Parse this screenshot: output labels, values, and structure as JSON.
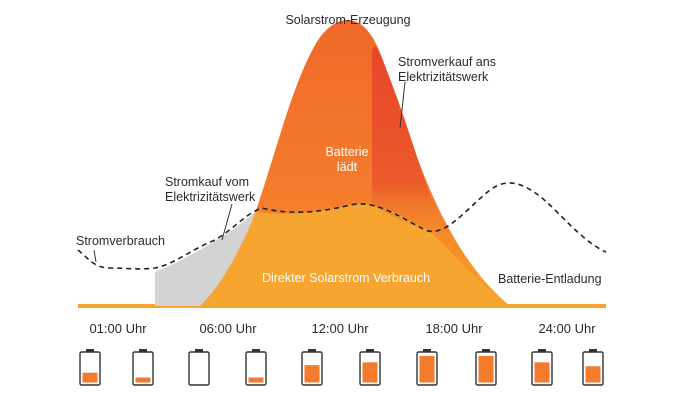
{
  "labels": {
    "solar_peak": "Solarstrom-Erzeugung",
    "sell_line1": "Stromverkauf ans",
    "sell_line2": "Elektrizitätswerk",
    "buy_line1": "Stromkauf vom",
    "buy_line2": "Elektrizitätswerk",
    "consumption": "Stromverbrauch",
    "battery_charging_line1": "Batterie",
    "battery_charging_line2": "lädt",
    "direct_use": "Direkter Solarstrom Verbrauch",
    "battery_discharge": "Batterie-Entladung"
  },
  "times": [
    "01:00 Uhr",
    "06:00 Uhr",
    "12:00 Uhr",
    "18:00 Uhr",
    "24:00 Uhr"
  ],
  "batteries": [
    {
      "level": 0.35
    },
    {
      "level": 0.18
    },
    {
      "level": 0.0
    },
    {
      "level": 0.18
    },
    {
      "level": 0.62
    },
    {
      "level": 0.72
    },
    {
      "level": 0.95
    },
    {
      "level": 0.95
    },
    {
      "level": 0.72
    },
    {
      "level": 0.58
    }
  ],
  "colors": {
    "solar_gradient_top": "#F0682A",
    "solar_gradient_bottom": "#F5A623",
    "sell": "#E84A2A",
    "buy": "#D0D0D0",
    "direct": "#F6A531",
    "baseline": "#F6A531",
    "battery_fill": "#F47B2B",
    "battery_outline": "#333333"
  }
}
